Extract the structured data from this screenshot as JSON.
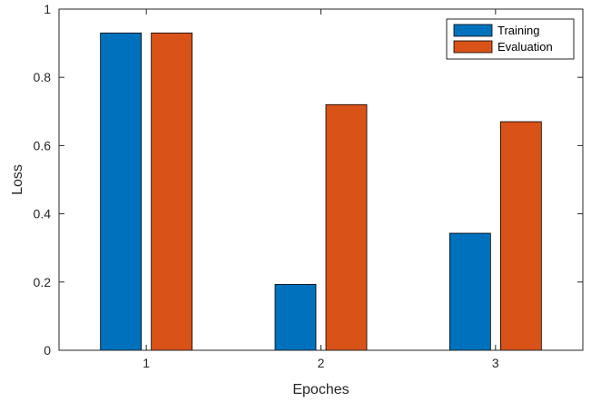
{
  "chart_data": {
    "type": "bar",
    "categories": [
      "1",
      "2",
      "3"
    ],
    "series": [
      {
        "name": "Training",
        "values": [
          0.93,
          0.193,
          0.343
        ],
        "color": "#0072BD"
      },
      {
        "name": "Evaluation",
        "values": [
          0.93,
          0.72,
          0.67
        ],
        "color": "#D95319"
      }
    ],
    "xlabel": "Epoches",
    "ylabel": "Loss",
    "ylim": [
      0,
      1
    ],
    "yticks": [
      "0",
      "0.2",
      "0.4",
      "0.6",
      "0.8",
      "1"
    ],
    "yticks_values": [
      0,
      0.2,
      0.4,
      0.6,
      0.8,
      1
    ],
    "grid": false,
    "legend_position": "top-right"
  }
}
